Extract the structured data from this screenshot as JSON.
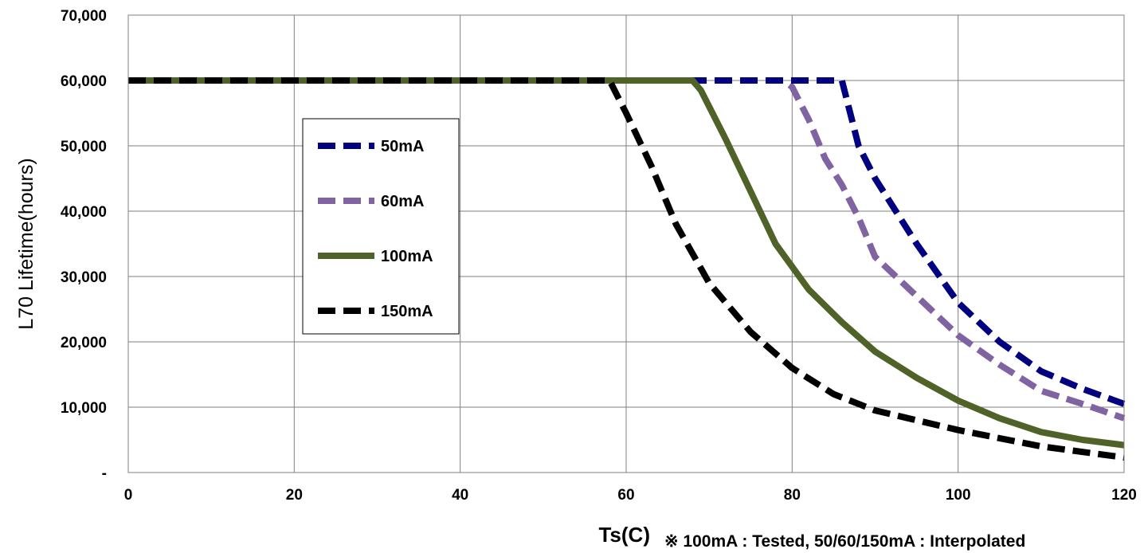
{
  "chart_data": {
    "type": "line",
    "xlabel": "Ts(C)",
    "ylabel": "L70 Lifetime(hours)",
    "note": "※ 100mA : Tested,  50/60/150mA : Interpolated",
    "xlim": [
      0,
      120
    ],
    "ylim": [
      0,
      70000
    ],
    "x_ticks": [
      0,
      20,
      40,
      60,
      80,
      100,
      120
    ],
    "x_tick_labels": [
      "0",
      "20",
      "40",
      "60",
      "80",
      "100",
      "120"
    ],
    "y_ticks": [
      0,
      10000,
      20000,
      30000,
      40000,
      50000,
      60000,
      70000
    ],
    "y_tick_labels": [
      "-",
      "10,000",
      "20,000",
      "30,000",
      "40,000",
      "50,000",
      "60,000",
      "70,000"
    ],
    "grid": true,
    "legend_position": "left-middle",
    "series": [
      {
        "name": "50mA",
        "color": "#000080",
        "style": "dashed",
        "points": [
          [
            0,
            60000
          ],
          [
            86,
            60000
          ],
          [
            88,
            50000
          ],
          [
            90,
            45000
          ],
          [
            92,
            41000
          ],
          [
            95,
            35000
          ],
          [
            100,
            26000
          ],
          [
            105,
            20000
          ],
          [
            110,
            15500
          ],
          [
            115,
            12800
          ],
          [
            120,
            10500
          ]
        ]
      },
      {
        "name": "60mA",
        "color": "#8064A2",
        "style": "dashed",
        "points": [
          [
            0,
            60000
          ],
          [
            79,
            60000
          ],
          [
            80,
            59000
          ],
          [
            82,
            54000
          ],
          [
            84,
            48000
          ],
          [
            86,
            44000
          ],
          [
            88,
            39000
          ],
          [
            90,
            33000
          ],
          [
            95,
            27000
          ],
          [
            100,
            21000
          ],
          [
            105,
            16500
          ],
          [
            110,
            12500
          ],
          [
            115,
            10500
          ],
          [
            120,
            8300
          ]
        ]
      },
      {
        "name": "100mA",
        "color": "#4F6228",
        "style": "solid",
        "points": [
          [
            0,
            60000
          ],
          [
            68,
            60000
          ],
          [
            69,
            58500
          ],
          [
            72,
            51000
          ],
          [
            75,
            43000
          ],
          [
            78,
            35000
          ],
          [
            82,
            28000
          ],
          [
            86,
            23000
          ],
          [
            90,
            18500
          ],
          [
            95,
            14500
          ],
          [
            100,
            11000
          ],
          [
            105,
            8300
          ],
          [
            110,
            6200
          ],
          [
            115,
            5000
          ],
          [
            120,
            4200
          ]
        ]
      },
      {
        "name": "150mA",
        "color": "#000000",
        "style": "dashed",
        "points": [
          [
            0,
            60000
          ],
          [
            58,
            60000
          ],
          [
            60,
            55000
          ],
          [
            63,
            47000
          ],
          [
            66,
            38000
          ],
          [
            70,
            29000
          ],
          [
            75,
            21500
          ],
          [
            80,
            16000
          ],
          [
            85,
            12000
          ],
          [
            90,
            9500
          ],
          [
            100,
            6500
          ],
          [
            110,
            4000
          ],
          [
            120,
            2300
          ]
        ]
      }
    ]
  }
}
